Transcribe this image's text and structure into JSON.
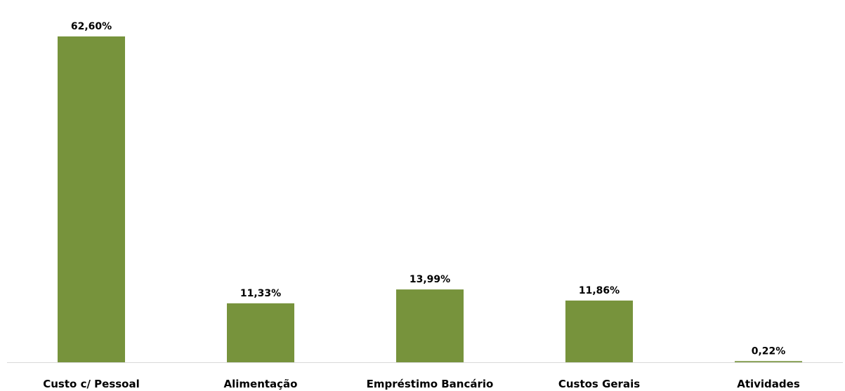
{
  "chart_data": {
    "type": "bar",
    "categories": [
      "Custo c/ Pessoal",
      "Alimentação",
      "Empréstimo Bancário",
      "Custos Gerais",
      "Atividades"
    ],
    "values": [
      62.6,
      11.33,
      13.99,
      11.86,
      0.22
    ],
    "data_labels": [
      "62,60%",
      "11,33%",
      "13,99%",
      "11,86%",
      "0,22%"
    ],
    "bar_color": "#77933c",
    "title": "",
    "xlabel": "",
    "ylabel": "",
    "ylim": [
      0,
      62.6
    ],
    "grid": false,
    "legend": "none"
  }
}
